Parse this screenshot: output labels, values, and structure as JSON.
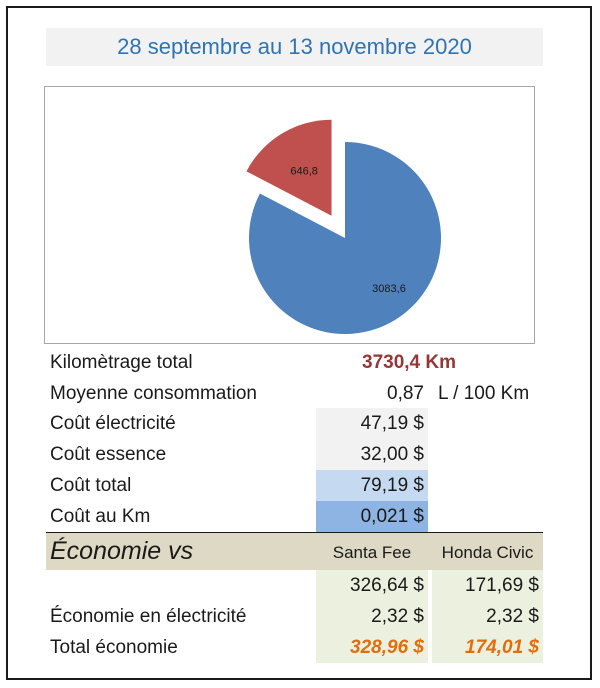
{
  "title": "28 septembre au 13 novembre 2020",
  "chart_data": {
    "type": "pie",
    "values": [
      3083.6,
      646.8
    ],
    "labels": [
      "3083,6",
      "646,8"
    ],
    "colors": [
      "#4f81bd",
      "#c0504d"
    ],
    "exploded": [
      false,
      true
    ]
  },
  "summary": {
    "km_label": "Kilomètrage total",
    "km_value": "3730,4 Km",
    "conso_label": "Moyenne consommation",
    "conso_value": "0,87",
    "conso_unit": "L / 100 Km",
    "elec_label": "Coût électricité",
    "elec_value": "47,19 $",
    "ess_label": "Coût essence",
    "ess_value": "32,00 $",
    "total_label": "Coût total",
    "total_value": "79,19 $",
    "perkm_label": "Coût au Km",
    "perkm_value": "0,021 $"
  },
  "economy": {
    "title": "Économie vs",
    "col1": "Santa Fee",
    "col2": "Honda Civic",
    "row1_v1": "326,64 $",
    "row1_v2": "171,69 $",
    "row2_label": "Économie en électricité",
    "row2_v1": "2,32 $",
    "row2_v2": "2,32 $",
    "row3_label": "Total économie",
    "row3_v1": "328,96 $",
    "row3_v2": "174,01 $"
  },
  "colors": {
    "title_text": "#2e74b5",
    "km_value": "#953735",
    "grey_cell": "#f2f2f2",
    "light_blue_cell": "#c5d9f1",
    "blue_cell": "#8db4e2",
    "eco_band": "#ddd9c4",
    "green_cell": "#ebf1de",
    "orange_text": "#e46c0a"
  }
}
